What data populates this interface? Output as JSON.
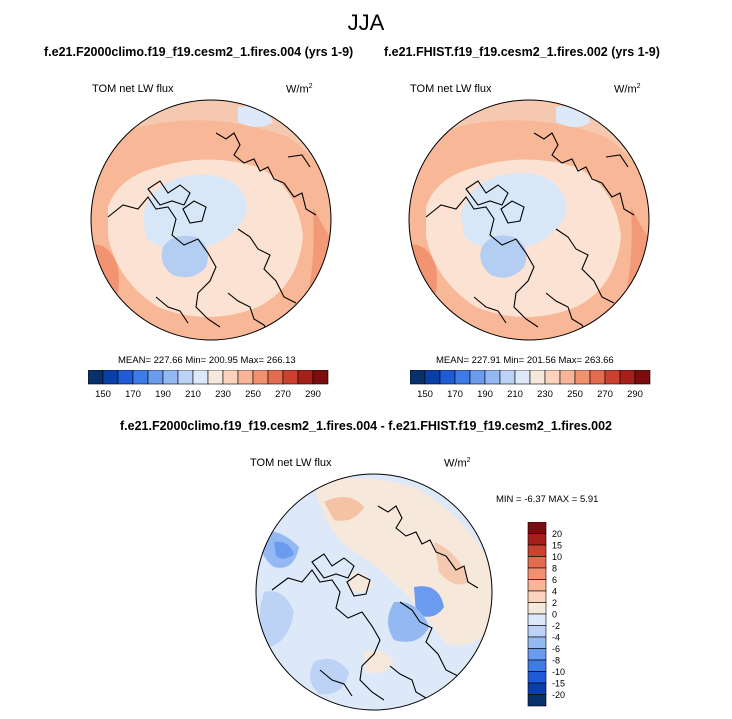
{
  "main_title": "JJA",
  "panels": [
    {
      "title": "f.e21.F2000climo.f19_f19.cesm2_1.fires.004 (yrs 1-9)",
      "field": "TOM net LW flux",
      "units": "W/m",
      "units_sup": "2",
      "stats": "MEAN= 227.66  Min= 200.95  Max= 266.13"
    },
    {
      "title": "f.e21.FHIST.f19_f19.cesm2_1.fires.002 (yrs 1-9)",
      "field": "TOM net LW flux",
      "units": "W/m",
      "units_sup": "2",
      "stats": "MEAN= 227.91  Min= 201.56  Max= 263.66"
    }
  ],
  "diff_panel": {
    "title": "f.e21.F2000climo.f19_f19.cesm2_1.fires.004 - f.e21.FHIST.f19_f19.cesm2_1.fires.002",
    "field": "TOM net LW flux",
    "units": "W/m",
    "units_sup": "2",
    "stats": "MIN =  -6.37 MAX =   5.91"
  },
  "colorbar_main": {
    "colors": [
      "#08306b",
      "#0b3fa8",
      "#1f5bd6",
      "#3e7be6",
      "#6a9bee",
      "#93b8f2",
      "#bcd3f5",
      "#dde9f8",
      "#f7e8dc",
      "#fbd3bd",
      "#f9b597",
      "#f29170",
      "#e36b4f",
      "#cb4330",
      "#a6201a",
      "#7a0d0d"
    ],
    "labels": [
      "150",
      "170",
      "190",
      "210",
      "230",
      "250",
      "270",
      "290"
    ]
  },
  "colorbar_diff": {
    "colors": [
      "#7a0d0d",
      "#a6201a",
      "#cb4330",
      "#e36b4f",
      "#f29170",
      "#f9b597",
      "#fbd3bd",
      "#f7e8dc",
      "#dde9f8",
      "#bcd3f5",
      "#93b8f2",
      "#6a9bee",
      "#3e7be6",
      "#1f5bd6",
      "#0b3fa8",
      "#08306b"
    ],
    "labels": [
      "20",
      "15",
      "10",
      "8",
      "6",
      "4",
      "2",
      "0",
      "-2",
      "-4",
      "-6",
      "-8",
      "-10",
      "-15",
      "-20"
    ]
  }
}
